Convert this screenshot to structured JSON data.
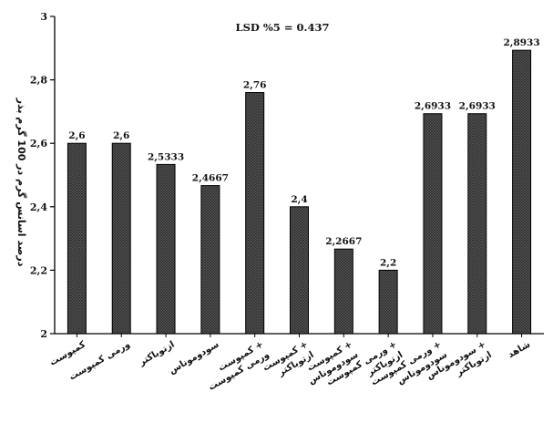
{
  "chart_data": {
    "type": "bar",
    "title": "LSD %5 = 0.437",
    "ylabel": "درصد اسانس گرم در 100 گرم بذر",
    "xlabel": "",
    "ylim": [
      2,
      3
    ],
    "yticks": [
      "2",
      "2,2",
      "2,4",
      "2,6",
      "2,8",
      "3"
    ],
    "grid": false,
    "legend": "none",
    "bar_style": "cross-hatched dark gray with black outline",
    "categories": [
      "کمپوست",
      "ورمی کمپوست",
      "ازتوباکتر",
      "سودوموناس",
      "کمپوست + ورمی کمپوست",
      "کمپوست + ازتوباکتر",
      "کمپوست + سودوموناس",
      "ورمی کمپوست + ازتوباکتر",
      "ورمی کمپوست + سودوموناس",
      "سودوموناس + ازتوباکتر",
      "شاهد"
    ],
    "values": [
      2.6,
      2.6,
      2.5333,
      2.4667,
      2.76,
      2.4,
      2.2667,
      2.2,
      2.6933,
      2.6933,
      2.8933
    ],
    "data_labels": [
      "2,6",
      "2,6",
      "2,5333",
      "2,4667",
      "2,76",
      "2,4",
      "2,2667",
      "2,2",
      "2,6933",
      "2,6933",
      "2,8933"
    ]
  }
}
